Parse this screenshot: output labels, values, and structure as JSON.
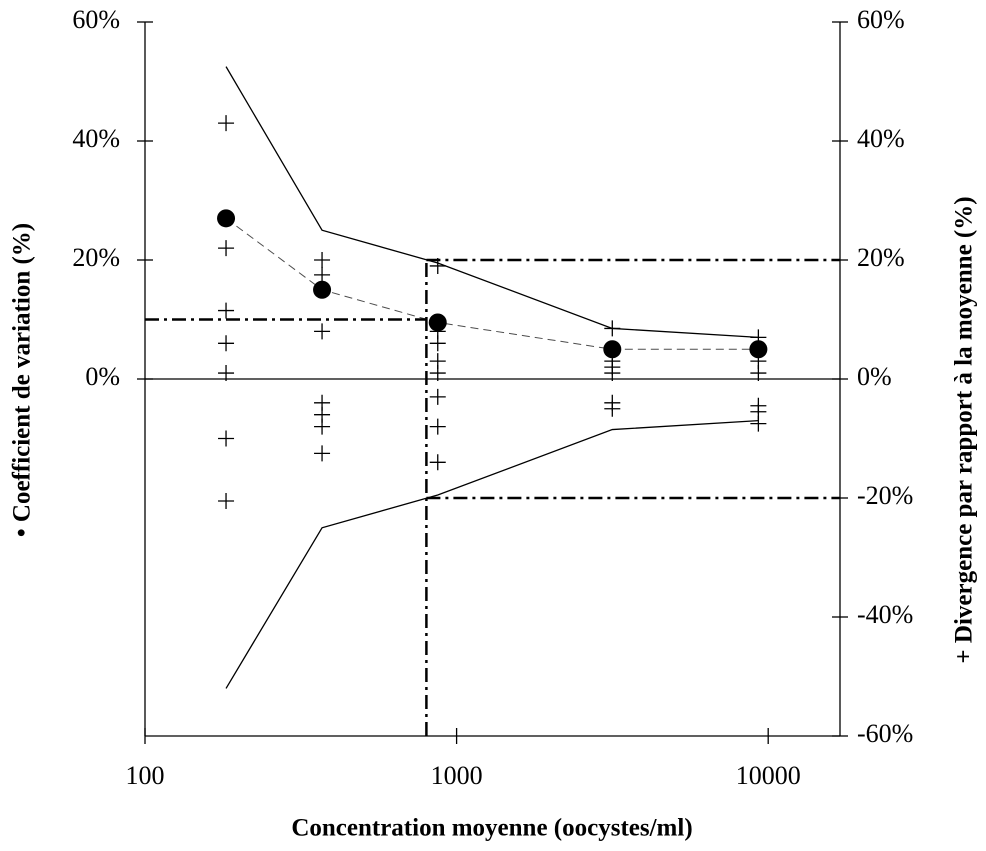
{
  "chart_data": {
    "type": "line",
    "x_label": "Concentration moyenne (oocystes/ml)",
    "y_label": "• Coefficient de variation (%)",
    "y2_label": "+ Divergence par rapport à la moyenne (%)",
    "log_x": true,
    "xlim": [
      100,
      17000
    ],
    "xticks": [
      100,
      1000,
      10000
    ],
    "ylim": [
      -60,
      60
    ],
    "yticks": [
      {
        "value": 0,
        "label": "0%"
      },
      {
        "value": 20,
        "label": "20%"
      },
      {
        "value": 40,
        "label": "40%"
      },
      {
        "value": 60,
        "label": "60%"
      }
    ],
    "y2lim": [
      -60,
      60
    ],
    "y2ticks": [
      {
        "value": -60,
        "label": "-60%"
      },
      {
        "value": -40,
        "label": "-40%"
      },
      {
        "value": -20,
        "label": "-20%"
      },
      {
        "value": 0,
        "label": "0%"
      },
      {
        "value": 20,
        "label": "20%"
      },
      {
        "value": 40,
        "label": "40%"
      },
      {
        "value": 60,
        "label": "60%"
      }
    ],
    "x": [
      182,
      370,
      870,
      3160,
      9300
    ],
    "cv": {
      "color": "#000000",
      "values": [
        27,
        15,
        9.5,
        5,
        5
      ]
    },
    "upper_limit": {
      "color": "#000000",
      "values": [
        52.5,
        25,
        19.5,
        8.5,
        7
      ]
    },
    "lower_limit": {
      "color": "#000000",
      "values": [
        -52,
        -25,
        -19.5,
        -8.5,
        -7
      ]
    },
    "divergence": {
      "axis": "y2",
      "color": "#000000",
      "x": [
        182,
        182,
        182,
        182,
        182,
        182,
        182,
        370,
        370,
        370,
        370,
        370,
        370,
        370,
        870,
        870,
        870,
        870,
        870,
        870,
        870,
        870,
        3160,
        3160,
        3160,
        3160,
        3160,
        3160,
        9300,
        9300,
        9300,
        9300,
        9300,
        9300
      ],
      "values": [
        43,
        22,
        11.5,
        6,
        1,
        -10,
        -20.5,
        20,
        17.5,
        8,
        -4,
        -6,
        -8,
        -12.5,
        19,
        8,
        6,
        3,
        1,
        -3,
        -8,
        -14,
        8.5,
        3,
        2,
        1,
        -4,
        -5,
        7,
        3,
        1,
        -4.5,
        -5.5,
        -7.5
      ]
    },
    "threshold_x": 800,
    "cv_threshold": 10,
    "divergence_thresholds": [
      20,
      -20
    ]
  }
}
